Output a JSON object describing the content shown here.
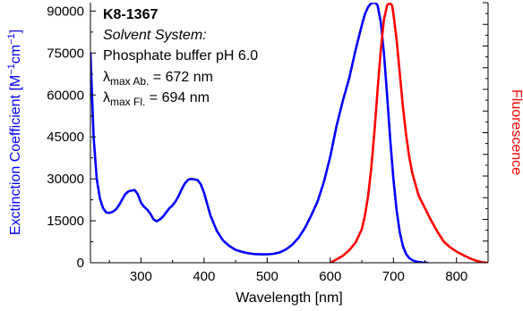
{
  "chart_data": {
    "type": "line",
    "xlabel": "Wavelength [nm]",
    "ylabel_left": "Exctinction Coefficient [M",
    "ylabel_left_sup1": "−1",
    "ylabel_left_mid": "cm",
    "ylabel_left_sup2": "−1",
    "ylabel_left_end": "]",
    "ylabel_right": "Fluorescence",
    "xlim": [
      220,
      850
    ],
    "ylim": [
      0,
      93000
    ],
    "x_ticks": [
      300,
      400,
      500,
      600,
      700,
      800
    ],
    "x_tick_labels": [
      "300",
      "400",
      "500",
      "600",
      "700",
      "800"
    ],
    "y_ticks": [
      0,
      15000,
      30000,
      45000,
      60000,
      75000,
      90000
    ],
    "y_tick_labels": [
      "0",
      "15000",
      "30000",
      "45000",
      "60000",
      "75000",
      "90000"
    ],
    "grid": false,
    "annotation": {
      "compound": "K8-1367",
      "solvent_heading": "Solvent System:",
      "solvent": "Phosphate buffer pH 6.0",
      "lambda": "λ",
      "abs_sub": "max Ab.",
      "abs_value": " = 672 nm",
      "fl_sub": "max Fl.",
      "fl_value": " = 694 nm"
    },
    "colors": {
      "absorption": "#0000ff",
      "fluorescence": "#ff0000",
      "axis": "#000000"
    },
    "series": [
      {
        "axis": "left",
        "color": "#0000ff",
        "x": [
          220,
          225,
          230,
          235,
          240,
          245,
          250,
          255,
          260,
          265,
          270,
          275,
          280,
          285,
          290,
          295,
          300,
          305,
          310,
          315,
          320,
          325,
          330,
          335,
          340,
          345,
          350,
          355,
          360,
          365,
          370,
          375,
          380,
          385,
          390,
          395,
          400,
          405,
          410,
          420,
          430,
          440,
          450,
          460,
          470,
          480,
          490,
          500,
          510,
          520,
          530,
          540,
          550,
          560,
          570,
          580,
          590,
          600,
          610,
          620,
          630,
          640,
          650,
          655,
          660,
          665,
          670,
          672,
          675,
          680,
          685,
          690,
          695,
          700,
          705,
          710,
          715,
          720,
          725,
          730,
          735,
          740,
          745,
          750,
          755
        ],
        "y": [
          75000,
          45000,
          30000,
          23000,
          19500,
          18000,
          17800,
          18200,
          19000,
          20500,
          22500,
          24500,
          25500,
          25800,
          26000,
          24500,
          21500,
          20000,
          19000,
          17500,
          15500,
          14800,
          15500,
          16500,
          18000,
          19500,
          20500,
          22000,
          24000,
          26500,
          28500,
          29700,
          30000,
          29800,
          29500,
          28000,
          25000,
          21000,
          17000,
          11500,
          8000,
          6000,
          4600,
          3900,
          3400,
          3100,
          3000,
          3000,
          3200,
          3700,
          4800,
          6500,
          9000,
          12500,
          17000,
          22000,
          29000,
          38000,
          49000,
          58000,
          66000,
          76000,
          85000,
          89000,
          91500,
          92800,
          93000,
          92900,
          92000,
          86000,
          75000,
          60000,
          44000,
          30000,
          19000,
          11000,
          6000,
          3200,
          1700,
          900,
          500,
          250,
          100,
          30,
          0
        ]
      },
      {
        "axis": "right",
        "color": "#ff0000",
        "x": [
          600,
          610,
          620,
          630,
          640,
          650,
          655,
          660,
          665,
          670,
          675,
          680,
          685,
          690,
          694,
          698,
          700,
          705,
          710,
          715,
          720,
          725,
          730,
          740,
          750,
          760,
          770,
          780,
          790,
          800,
          810,
          820,
          830,
          840,
          850
        ],
        "y": [
          0,
          1200,
          2500,
          4500,
          7200,
          12000,
          17000,
          24000,
          34000,
          47000,
          62000,
          76000,
          87000,
          92000,
          93000,
          92000,
          89000,
          80000,
          68000,
          56000,
          46000,
          38000,
          32000,
          24000,
          19500,
          15000,
          11000,
          7500,
          5500,
          4000,
          2800,
          1700,
          800,
          200,
          0
        ]
      }
    ]
  }
}
